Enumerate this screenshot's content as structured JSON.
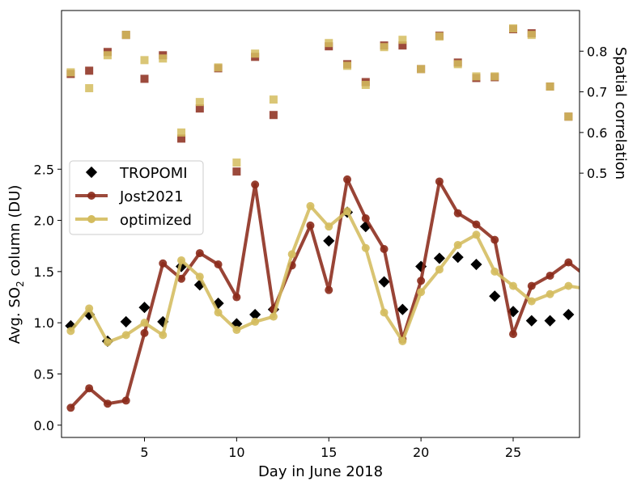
{
  "chart_data": {
    "type": "line",
    "xlabel": "Day in June 2018",
    "ylabel_parts": {
      "prefix": "Avg. SO",
      "sub": "2",
      "suffix": " column (DU)"
    },
    "y2label": "Spatial correlation",
    "xlim": [
      0.5,
      28.6
    ],
    "ylim": [
      -0.12,
      4.05
    ],
    "y2lim": [
      -0.15,
      0.9
    ],
    "xticks": [
      5,
      10,
      15,
      20,
      25
    ],
    "yticks": [
      0.0,
      0.5,
      1.0,
      1.5,
      2.0,
      2.5
    ],
    "ytick_labels": [
      "0.0",
      "0.5",
      "1.0",
      "1.5",
      "2.0",
      "2.5"
    ],
    "y2ticks": [
      0.5,
      0.6,
      0.7,
      0.8
    ],
    "y2tick_labels": [
      "0.5",
      "0.6",
      "0.7",
      "0.8"
    ],
    "grid": false,
    "legend_position": "upper-left",
    "series": [
      {
        "name": "TROPOMI",
        "kind": "scatter",
        "marker": "diamond",
        "color": "#000000",
        "axis": "left",
        "x": [
          1,
          2,
          3,
          4,
          5,
          6,
          7,
          8,
          9,
          10,
          11,
          12,
          15,
          16,
          17,
          18,
          19,
          20,
          21,
          22,
          23,
          24,
          25,
          26,
          27,
          28
        ],
        "y": [
          0.97,
          1.08,
          0.82,
          1.01,
          1.15,
          1.01,
          1.55,
          1.37,
          1.19,
          0.99,
          1.08,
          1.13,
          1.8,
          2.08,
          1.94,
          1.4,
          1.13,
          1.55,
          1.63,
          1.64,
          1.57,
          1.26,
          1.11,
          1.02,
          1.02,
          1.08
        ]
      },
      {
        "name": "Jost2021",
        "kind": "line",
        "marker": "circle",
        "color": "#8b2a1a",
        "axis": "left",
        "x": [
          1,
          2,
          3,
          4,
          5,
          6,
          7,
          8,
          9,
          10,
          11,
          12,
          13,
          14,
          15,
          16,
          17,
          18,
          19,
          20,
          21,
          22,
          23,
          24,
          25,
          26,
          27,
          28,
          29
        ],
        "y": [
          0.17,
          0.36,
          0.21,
          0.24,
          0.9,
          1.58,
          1.43,
          1.68,
          1.57,
          1.25,
          2.35,
          1.13,
          1.56,
          1.95,
          1.32,
          2.4,
          2.02,
          1.72,
          0.84,
          1.41,
          2.38,
          2.07,
          1.96,
          1.81,
          0.89,
          1.36,
          1.46,
          1.59,
          1.45
        ]
      },
      {
        "name": "optimized",
        "kind": "line",
        "marker": "circle",
        "color": "#d4bc5e",
        "axis": "left",
        "x": [
          1,
          2,
          3,
          4,
          5,
          6,
          7,
          8,
          9,
          10,
          11,
          12,
          13,
          14,
          15,
          16,
          17,
          18,
          19,
          20,
          21,
          22,
          23,
          24,
          25,
          26,
          27,
          28,
          29
        ],
        "y": [
          0.92,
          1.14,
          0.81,
          0.88,
          1.0,
          0.88,
          1.61,
          1.45,
          1.1,
          0.93,
          1.01,
          1.06,
          1.67,
          2.14,
          1.94,
          2.09,
          1.73,
          1.1,
          0.82,
          1.3,
          1.52,
          1.76,
          1.86,
          1.5,
          1.36,
          1.21,
          1.28,
          1.36,
          1.33
        ]
      },
      {
        "kind": "scatter",
        "marker": "square",
        "color": "#8b2a1a",
        "axis": "right",
        "x": [
          1,
          2,
          3,
          4,
          5,
          6,
          7,
          8,
          9,
          10,
          11,
          12,
          15,
          16,
          17,
          18,
          19,
          20,
          21,
          22,
          23,
          24,
          25,
          26,
          27,
          28
        ],
        "y": [
          0.744,
          0.752,
          0.798,
          0.84,
          0.732,
          0.79,
          0.585,
          0.659,
          0.758,
          0.504,
          0.786,
          0.643,
          0.812,
          0.768,
          0.724,
          0.814,
          0.814,
          0.756,
          0.838,
          0.772,
          0.734,
          0.736,
          0.854,
          0.844,
          0.713,
          0.639
        ]
      },
      {
        "kind": "scatter",
        "marker": "square",
        "color": "#d4bc5e",
        "axis": "right",
        "x": [
          1,
          2,
          3,
          4,
          5,
          6,
          7,
          8,
          9,
          10,
          11,
          12,
          15,
          16,
          17,
          18,
          19,
          20,
          21,
          22,
          23,
          24,
          25,
          26,
          27,
          28
        ],
        "y": [
          0.748,
          0.709,
          0.79,
          0.84,
          0.778,
          0.782,
          0.6,
          0.675,
          0.76,
          0.526,
          0.794,
          0.681,
          0.82,
          0.764,
          0.717,
          0.81,
          0.828,
          0.756,
          0.836,
          0.768,
          0.738,
          0.738,
          0.856,
          0.84,
          0.713,
          0.639
        ]
      }
    ]
  }
}
